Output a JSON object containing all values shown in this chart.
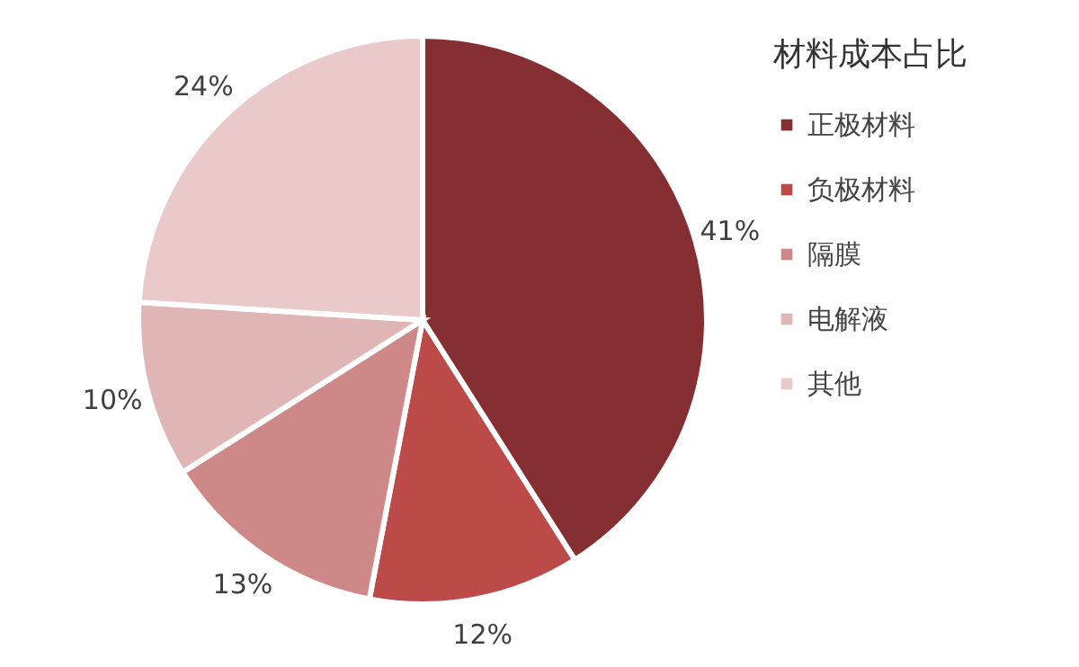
{
  "chart_data": {
    "type": "pie",
    "legend_title": "材料成本占比",
    "categories": [
      "正极材料",
      "负极材料",
      "隔膜",
      "电解液",
      "其他"
    ],
    "values": [
      41,
      12,
      13,
      10,
      24
    ],
    "value_labels": [
      "41%",
      "12%",
      "13%",
      "10%",
      "24%"
    ],
    "colors": [
      "#862f32",
      "#bc4a48",
      "#cd8887",
      "#e0b5b5",
      "#e9c9ca"
    ],
    "legend": "right"
  }
}
